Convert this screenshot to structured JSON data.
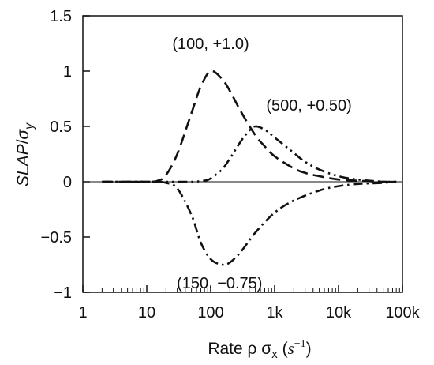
{
  "chart_data": {
    "type": "line",
    "title": "",
    "xlabel_parts": {
      "main": "Rate ρ σ",
      "sub": "x",
      "unit_open": " (",
      "unit_base": "s",
      "unit_exp": "−1",
      "unit_close": ")"
    },
    "ylabel_parts": {
      "main": "SLAP",
      "slash": "/",
      "sigma": "σ",
      "sub": "y"
    },
    "xscale": "log",
    "xlim": [
      1,
      100000
    ],
    "ylim": [
      -1,
      1.5
    ],
    "grid": false,
    "zero_line": true,
    "x_ticks": [
      {
        "value": 1,
        "label": "1"
      },
      {
        "value": 10,
        "label": "10"
      },
      {
        "value": 100,
        "label": "100"
      },
      {
        "value": 1000,
        "label": "1k"
      },
      {
        "value": 10000,
        "label": "10k"
      },
      {
        "value": 100000,
        "label": "100k"
      }
    ],
    "y_ticks": [
      {
        "value": 1.5,
        "label": "1.5"
      },
      {
        "value": 1,
        "label": "1"
      },
      {
        "value": 0.5,
        "label": "0.5"
      },
      {
        "value": 0,
        "label": "0"
      },
      {
        "value": -0.5,
        "label": "−0.5"
      },
      {
        "value": -1,
        "label": "−1"
      }
    ],
    "series": [
      {
        "style": "dashed",
        "peak_x": 100,
        "peak_y": 1.0,
        "x": [
          2,
          10,
          15,
          20,
          30,
          50,
          70,
          100,
          150,
          200,
          300,
          500,
          700,
          1000,
          2000,
          3000,
          5000,
          10000,
          20000,
          50000,
          80000
        ],
        "y": [
          0,
          0,
          0.01,
          0.06,
          0.25,
          0.62,
          0.86,
          1.0,
          0.93,
          0.82,
          0.63,
          0.42,
          0.32,
          0.23,
          0.12,
          0.08,
          0.05,
          0.02,
          0.01,
          0.0,
          0.0
        ]
      },
      {
        "style": "dash-dot-dot",
        "peak_x": 500,
        "peak_y": 0.5,
        "x": [
          2,
          20,
          50,
          80,
          100,
          150,
          200,
          300,
          400,
          500,
          700,
          1000,
          2000,
          3000,
          5000,
          10000,
          20000,
          50000,
          80000
        ],
        "y": [
          0,
          0,
          0,
          0.01,
          0.03,
          0.11,
          0.21,
          0.37,
          0.46,
          0.5,
          0.47,
          0.4,
          0.26,
          0.18,
          0.11,
          0.05,
          0.02,
          0.0,
          0.0
        ]
      },
      {
        "style": "dash-dot",
        "peak_x": 150,
        "peak_y": -0.75,
        "x": [
          2,
          10,
          15,
          20,
          30,
          50,
          70,
          100,
          150,
          200,
          300,
          500,
          1000,
          2000,
          5000,
          10000,
          20000,
          50000,
          80000
        ],
        "y": [
          0,
          0,
          0,
          -0.01,
          -0.06,
          -0.3,
          -0.55,
          -0.7,
          -0.75,
          -0.73,
          -0.63,
          -0.46,
          -0.28,
          -0.17,
          -0.08,
          -0.04,
          -0.02,
          -0.01,
          0.0
        ]
      }
    ],
    "annotations": [
      {
        "text": "(100, +1.0)",
        "x": 100,
        "y": 1.0
      },
      {
        "text": "(500, +0.50)",
        "x": 500,
        "y": 0.5
      },
      {
        "text": "(150, −0.75)",
        "x": 150,
        "y": -0.75
      }
    ]
  }
}
